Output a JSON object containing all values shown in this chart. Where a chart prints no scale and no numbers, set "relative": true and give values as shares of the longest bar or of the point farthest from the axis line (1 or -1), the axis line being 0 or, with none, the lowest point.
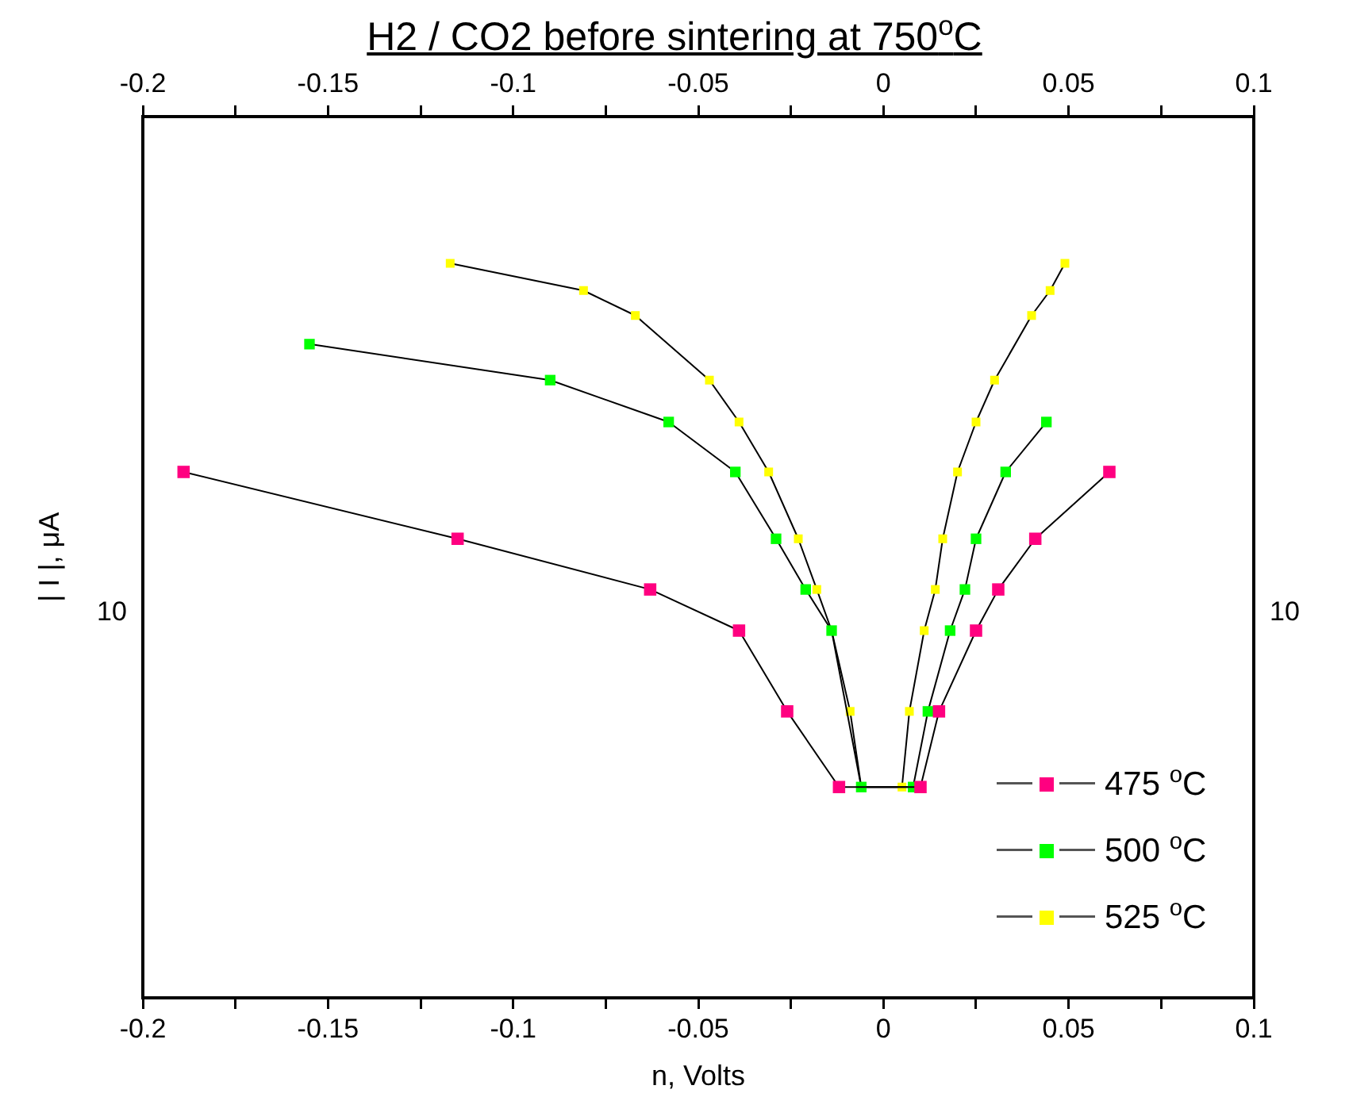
{
  "chart_data": {
    "type": "line",
    "title": "H2 / CO2 before sintering at 750$^{o}$C",
    "xlabel": "n, Volts",
    "ylabel": "| I |, μA",
    "relative": true,
    "annotations": [
      "10",
      "10"
    ],
    "xlim": [
      -0.2,
      0.1
    ],
    "xticks": [
      -0.2,
      {
        "value": -0.175,
        "label": null
      },
      -0.15,
      {
        "value": -0.125,
        "label": null
      },
      -0.1,
      {
        "value": -0.075,
        "label": null
      },
      -0.05,
      {
        "value": -0.025,
        "label": null
      },
      0,
      {
        "value": 0.025,
        "label": null
      },
      0.05,
      {
        "value": 0.075,
        "label": null
      },
      0.1
    ],
    "x2lim": [
      -0.2,
      0.1
    ],
    "x2ticks": [
      -0.2,
      {
        "value": -0.175,
        "label": null
      },
      -0.15,
      {
        "value": -0.125,
        "label": null
      },
      -0.1,
      {
        "value": -0.075,
        "label": null
      },
      -0.05,
      {
        "value": -0.025,
        "label": null
      },
      0,
      {
        "value": 0.025,
        "label": null
      },
      0.05,
      {
        "value": 0.075,
        "label": null
      },
      0.1
    ],
    "grid": false,
    "legend": "bottom right",
    "marker": "square",
    "line_style": "solid",
    "series": [
      {
        "name": "475 $^{o}$C",
        "color": "#ff0080",
        "x": [
          -0.189,
          -0.115,
          -0.063,
          -0.039,
          -0.026,
          -0.012,
          0.01,
          0.015,
          0.025,
          0.031,
          0.041,
          0.061
        ],
        "values": [
          0.716,
          0.625,
          0.556,
          0.5,
          0.39,
          0.287,
          0.287,
          0.39,
          0.5,
          0.556,
          0.625,
          0.716
        ]
      },
      {
        "name": "500 $^{o}$C",
        "color": "#00ff00",
        "x": [
          -0.155,
          -0.09,
          -0.058,
          -0.04,
          -0.029,
          -0.021,
          -0.014,
          -0.006,
          0.008,
          0.012,
          0.018,
          0.022,
          0.025,
          0.033,
          0.044
        ],
        "values": [
          0.89,
          0.841,
          0.784,
          0.716,
          0.625,
          0.556,
          0.5,
          0.287,
          0.287,
          0.39,
          0.5,
          0.556,
          0.625,
          0.716,
          0.784
        ]
      },
      {
        "name": "525 $^{o}$C",
        "color": "#ffff00",
        "x": [
          -0.117,
          -0.081,
          -0.067,
          -0.047,
          -0.039,
          -0.031,
          -0.023,
          -0.018,
          -0.014,
          -0.009,
          -0.006,
          0.005,
          0.007,
          0.011,
          0.014,
          0.016,
          0.02,
          0.025,
          0.03,
          0.04,
          0.045,
          0.049
        ],
        "values": [
          1,
          0.963,
          0.929,
          0.841,
          0.784,
          0.716,
          0.625,
          0.556,
          0.5,
          0.39,
          0.287,
          0.287,
          0.39,
          0.5,
          0.556,
          0.625,
          0.716,
          0.784,
          0.841,
          0.929,
          0.963,
          1
        ]
      }
    ]
  }
}
